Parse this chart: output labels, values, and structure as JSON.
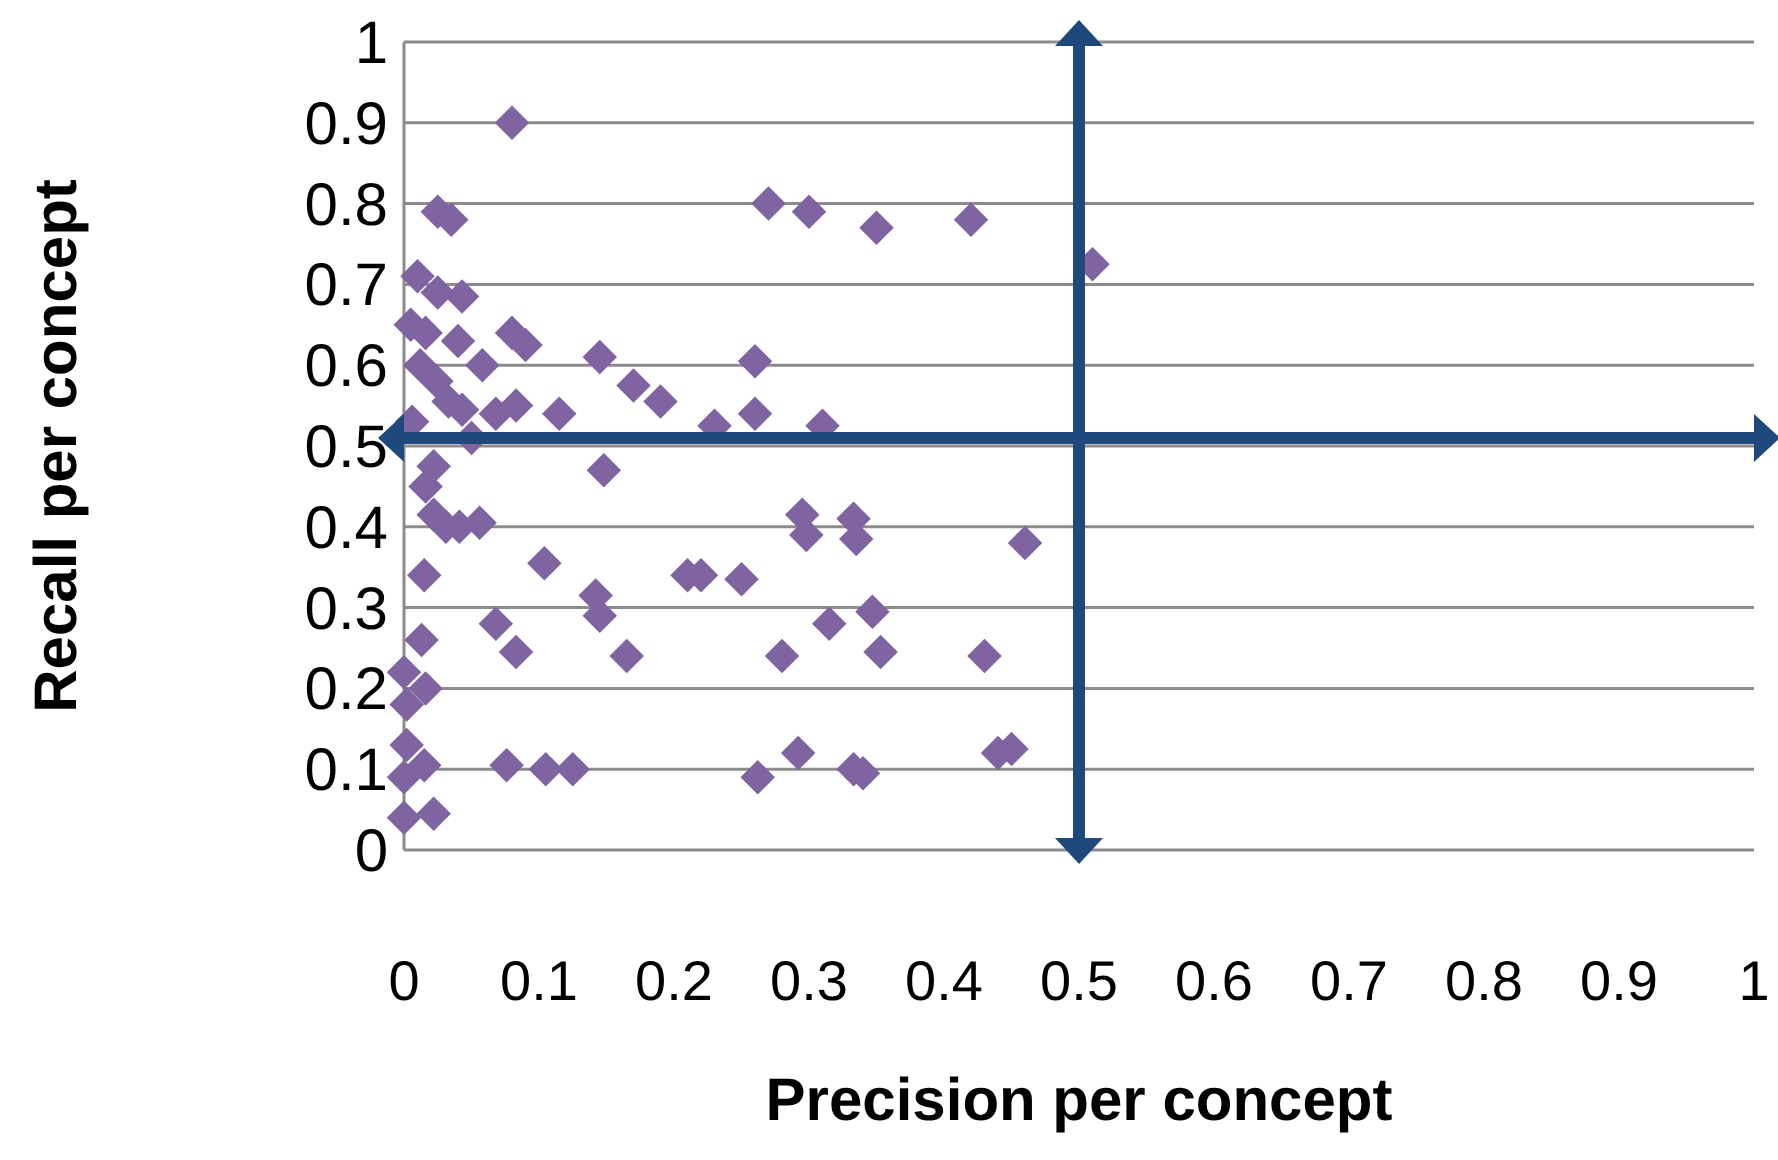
{
  "chart_data": {
    "type": "scatter",
    "xlabel": "Precision per concept",
    "ylabel": "Recall per concept",
    "xlim": [
      0,
      1
    ],
    "ylim": [
      0,
      1
    ],
    "xticks": [
      0,
      0.1,
      0.2,
      0.3,
      0.4,
      0.5,
      0.6,
      0.7,
      0.8,
      0.9,
      1
    ],
    "yticks": [
      0,
      0.1,
      0.2,
      0.3,
      0.4,
      0.5,
      0.6,
      0.7,
      0.8,
      0.9,
      1
    ],
    "grid": "y",
    "marker": "diamond",
    "ref_lines": [
      {
        "axis": "x",
        "value": 0.5,
        "color": "#1f497d"
      },
      {
        "axis": "y",
        "value": 0.51,
        "color": "#1f497d"
      }
    ],
    "series": [
      {
        "color": "#8064a2",
        "x": [
          0.08,
          0.025,
          0.035,
          0.27,
          0.3,
          0.35,
          0.42,
          0.51,
          0.01,
          0.025,
          0.043,
          0.005,
          0.016,
          0.04,
          0.08,
          0.09,
          0.012,
          0.024,
          0.058,
          0.145,
          0.17,
          0.19,
          0.26,
          0.033,
          0.043,
          0.068,
          0.083,
          0.115,
          0.006,
          0.05,
          0.23,
          0.26,
          0.31,
          0.022,
          0.016,
          0.148,
          0.022,
          0.031,
          0.056,
          0.041,
          0.015,
          0.104,
          0.21,
          0.22,
          0.25,
          0.142,
          0.145,
          0.068,
          0.083,
          0.165,
          0.013,
          0.0,
          0.016,
          0.002,
          0.002,
          0.015,
          0.0,
          0.076,
          0.105,
          0.125,
          0.022,
          0.0,
          0.295,
          0.333,
          0.298,
          0.335,
          0.46,
          0.315,
          0.347,
          0.28,
          0.353,
          0.43,
          0.262,
          0.292,
          0.333,
          0.34,
          0.44,
          0.45
        ],
        "values": [
          0.9,
          0.79,
          0.78,
          0.8,
          0.79,
          0.77,
          0.78,
          0.725,
          0.71,
          0.69,
          0.685,
          0.65,
          0.64,
          0.63,
          0.64,
          0.625,
          0.6,
          0.58,
          0.6,
          0.61,
          0.575,
          0.555,
          0.605,
          0.555,
          0.545,
          0.54,
          0.55,
          0.54,
          0.53,
          0.51,
          0.525,
          0.54,
          0.525,
          0.475,
          0.45,
          0.47,
          0.415,
          0.4,
          0.405,
          0.4,
          0.34,
          0.355,
          0.34,
          0.34,
          0.335,
          0.315,
          0.29,
          0.28,
          0.245,
          0.24,
          0.26,
          0.22,
          0.2,
          0.18,
          0.13,
          0.105,
          0.09,
          0.105,
          0.1,
          0.1,
          0.045,
          0.04,
          0.415,
          0.41,
          0.39,
          0.385,
          0.38,
          0.28,
          0.295,
          0.24,
          0.245,
          0.24,
          0.09,
          0.12,
          0.1,
          0.095,
          0.12,
          0.125
        ]
      }
    ]
  }
}
